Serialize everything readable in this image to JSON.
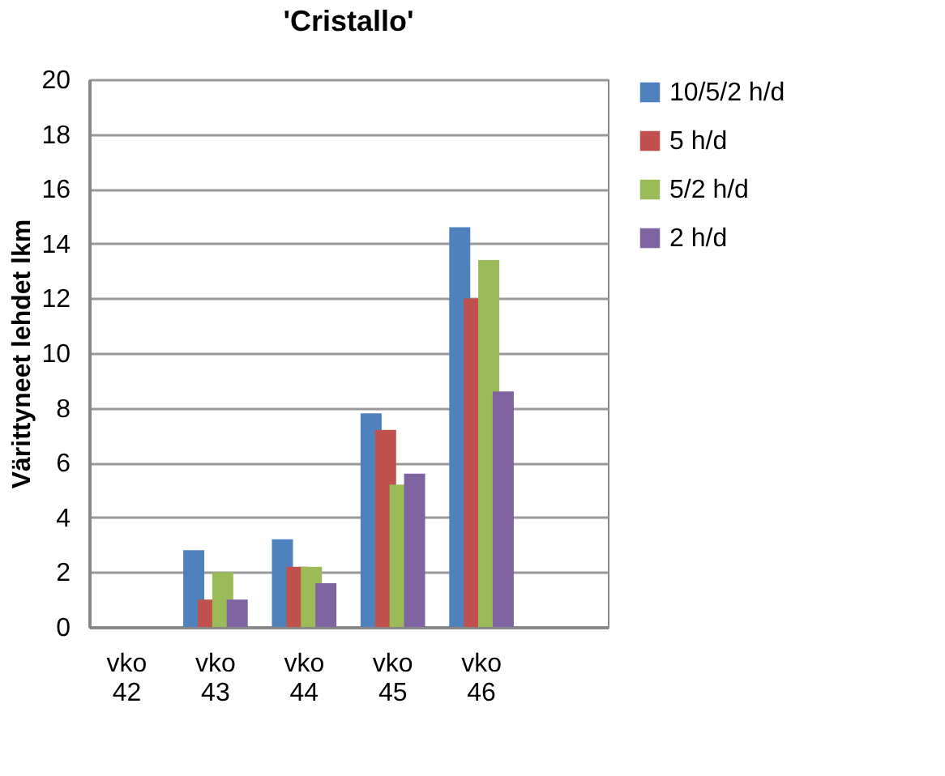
{
  "chart_data": {
    "type": "bar",
    "title": "'Cristallo'",
    "ylabel": "Värittyneet lehdet lkm",
    "categories": [
      "vko 42",
      "vko 43",
      "vko 44",
      "vko 45",
      "vko 46",
      null
    ],
    "series": [
      {
        "name": "10/5/2 h/d",
        "color": "#4f81bd",
        "values": [
          null,
          2.8,
          3.2,
          7.8,
          14.6,
          null
        ]
      },
      {
        "name": "5 h/d",
        "color": "#c0504d",
        "values": [
          null,
          1,
          2.2,
          7.2,
          12,
          null
        ]
      },
      {
        "name": "5/2 h/d",
        "color": "#9bbb59",
        "values": [
          null,
          2,
          2.2,
          5.2,
          13.4,
          null
        ]
      },
      {
        "name": "2 h/d",
        "color": "#8064a2",
        "values": [
          null,
          1,
          1.6,
          5.6,
          8.6,
          null
        ]
      }
    ],
    "ylim": [
      0,
      20
    ],
    "yticks": [
      0,
      2,
      4,
      6,
      8,
      10,
      12,
      14,
      16,
      18,
      20
    ],
    "grid": "y",
    "legend": "right"
  }
}
